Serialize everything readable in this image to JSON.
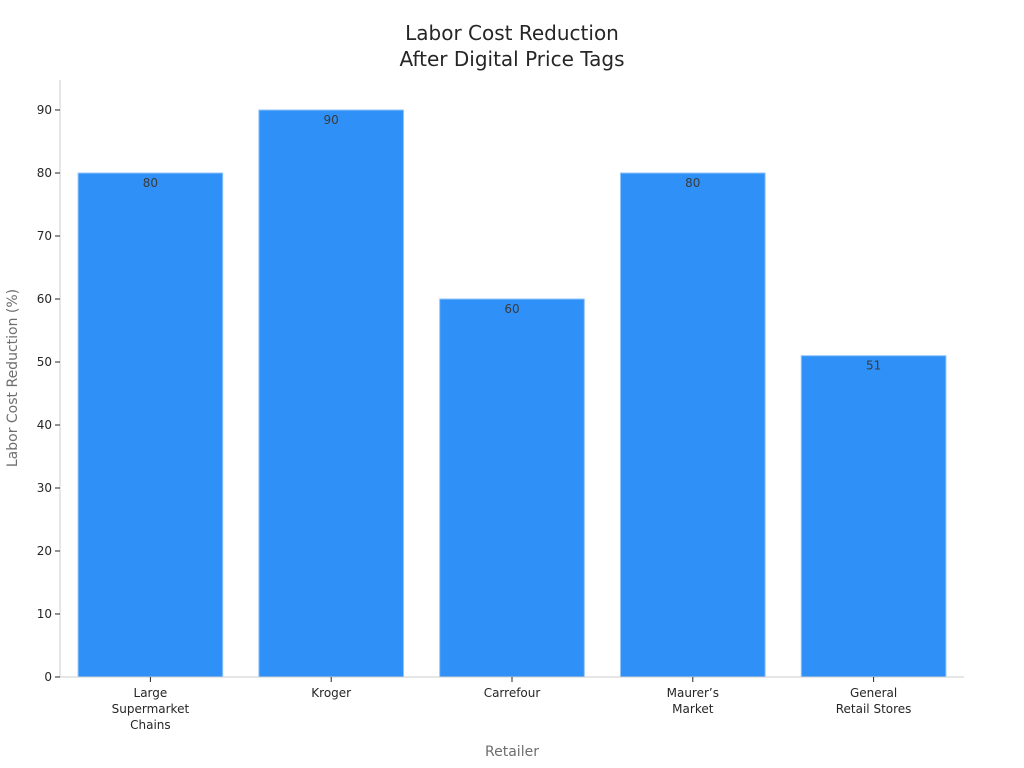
{
  "chart_data": {
    "type": "bar",
    "title": [
      "Labor Cost Reduction",
      "After Digital Price Tags"
    ],
    "xlabel": "Retailer",
    "ylabel": "Labor Cost Reduction (%)",
    "categories": [
      [
        "Large",
        "Supermarket",
        "Chains"
      ],
      [
        "Kroger"
      ],
      [
        "Carrefour"
      ],
      [
        "Maurer’s",
        "Market"
      ],
      [
        "General",
        "Retail Stores"
      ]
    ],
    "values": [
      80,
      90,
      60,
      80,
      51
    ],
    "data_labels": [
      "80",
      "90",
      "60",
      "80",
      "51"
    ],
    "ylim": [
      0,
      95
    ],
    "yticks": [
      0,
      10,
      20,
      30,
      40,
      50,
      60,
      70,
      80,
      90
    ],
    "grid": false,
    "legend": "none",
    "colors": {
      "bar": "#2f91f7",
      "bar_edge": "#90c4f8"
    }
  }
}
